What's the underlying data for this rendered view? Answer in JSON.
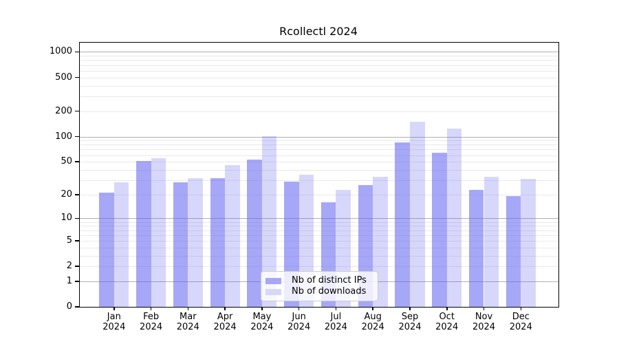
{
  "figure": {
    "background": "#ffffff",
    "axis_color": "#000000",
    "major_grid_color": "#b0b0b0",
    "minor_grid_color": "#e9e9e9"
  },
  "chart_data": {
    "type": "bar",
    "title": "Rcollectl 2024",
    "categories": [
      "Jan",
      "Feb",
      "Mar",
      "Apr",
      "May",
      "Jun",
      "Jul",
      "Aug",
      "Sep",
      "Oct",
      "Nov",
      "Dec"
    ],
    "category_year": "2024",
    "series": [
      {
        "name": "Nb of distinct IPs",
        "color": "#a7a7f6",
        "fill_rgba": "rgba(95,95,242,0.55)",
        "values": [
          21,
          51,
          28,
          32,
          53,
          29,
          16,
          26,
          85,
          64,
          23,
          19
        ]
      },
      {
        "name": "Nb of downloads",
        "color": "#d7d7f7",
        "fill_rgba": "rgba(95,95,242,0.25)",
        "values": [
          28,
          55,
          32,
          46,
          101,
          35,
          23,
          33,
          151,
          125,
          33,
          31
        ]
      }
    ],
    "y_scale": "log1p",
    "y_ticks": [
      0,
      1,
      2,
      5,
      10,
      20,
      50,
      100,
      200,
      500,
      1000
    ],
    "ylim": [
      0,
      1275
    ],
    "xlabel": "",
    "ylabel": "",
    "grid": true,
    "legend_position": "lower-center"
  }
}
